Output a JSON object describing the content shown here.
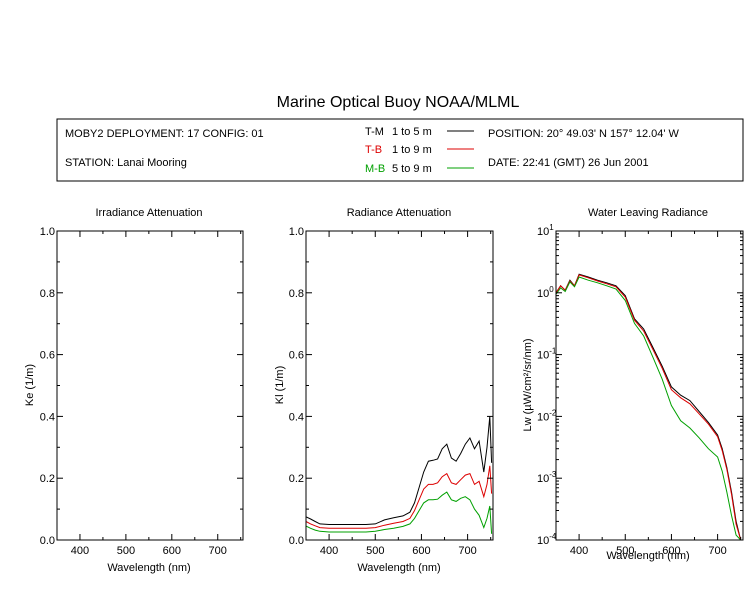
{
  "header": {
    "title": "Marine Optical Buoy NOAA/MLML",
    "deployment": "MOBY2 DEPLOYMENT: 17 CONFIG: 01",
    "station": "STATION: Lanai Mooring",
    "position": "POSITION: 20° 49.03' N   157° 12.04' W",
    "date": "DATE: 22:41 (GMT) 26 Jun 2001",
    "legend": [
      {
        "id": "TM",
        "code": "T-M",
        "range": "1 to 5  m",
        "color": "#000000"
      },
      {
        "id": "TB",
        "code": "T-B",
        "range": "1 to 9  m",
        "color": "#dd0000"
      },
      {
        "id": "MB",
        "code": "M-B",
        "range": "5 to 9  m",
        "color": "#00a000"
      }
    ]
  },
  "chart_data": [
    {
      "id": "irradiance",
      "type": "line",
      "title": "Irradiance Attenuation",
      "xlabel": "Wavelength (nm)",
      "ylabel": "Ke  (1/m)",
      "xlim": [
        350,
        755
      ],
      "ylim": [
        0,
        1
      ],
      "xticks": [
        400,
        500,
        600,
        700
      ],
      "yticks": [
        0,
        0.2,
        0.4,
        0.6,
        0.8,
        1.0
      ],
      "ytick_labels": [
        "0.0",
        "0.2",
        "0.4",
        "0.6",
        "0.8",
        "1.0"
      ],
      "yscale": "linear",
      "series": []
    },
    {
      "id": "radiance",
      "type": "line",
      "title": "Radiance Attenuation",
      "xlabel": "Wavelength (nm)",
      "ylabel": "Kl  (1/m)",
      "xlim": [
        350,
        755
      ],
      "ylim": [
        0,
        1
      ],
      "xticks": [
        400,
        500,
        600,
        700
      ],
      "yticks": [
        0,
        0.2,
        0.4,
        0.6,
        0.8,
        1.0
      ],
      "ytick_labels": [
        "0.0",
        "0.2",
        "0.4",
        "0.6",
        "0.8",
        "1.0"
      ],
      "yscale": "linear",
      "series": [
        {
          "name": "T-M",
          "color": "#000000",
          "x": [
            350,
            360,
            370,
            380,
            400,
            420,
            440,
            460,
            480,
            500,
            520,
            540,
            560,
            575,
            585,
            595,
            605,
            615,
            625,
            635,
            645,
            655,
            665,
            675,
            685,
            695,
            705,
            715,
            725,
            735,
            742,
            748,
            752
          ],
          "y": [
            0.075,
            0.068,
            0.06,
            0.052,
            0.05,
            0.05,
            0.05,
            0.05,
            0.05,
            0.052,
            0.065,
            0.072,
            0.078,
            0.09,
            0.12,
            0.17,
            0.22,
            0.255,
            0.258,
            0.262,
            0.295,
            0.31,
            0.265,
            0.255,
            0.28,
            0.31,
            0.33,
            0.295,
            0.32,
            0.22,
            0.3,
            0.4,
            0.25
          ]
        },
        {
          "name": "T-B",
          "color": "#dd0000",
          "x": [
            350,
            360,
            370,
            380,
            400,
            420,
            440,
            460,
            480,
            500,
            520,
            540,
            560,
            575,
            585,
            595,
            605,
            615,
            625,
            635,
            645,
            655,
            665,
            675,
            685,
            695,
            705,
            715,
            725,
            735,
            742,
            748,
            752
          ],
          "y": [
            0.06,
            0.052,
            0.046,
            0.04,
            0.038,
            0.038,
            0.038,
            0.038,
            0.038,
            0.04,
            0.048,
            0.054,
            0.06,
            0.07,
            0.095,
            0.13,
            0.165,
            0.18,
            0.18,
            0.185,
            0.205,
            0.215,
            0.185,
            0.18,
            0.195,
            0.21,
            0.215,
            0.18,
            0.19,
            0.14,
            0.18,
            0.24,
            0.15
          ]
        },
        {
          "name": "M-B",
          "color": "#00a000",
          "x": [
            350,
            360,
            370,
            380,
            400,
            420,
            440,
            460,
            480,
            500,
            520,
            540,
            560,
            575,
            585,
            595,
            605,
            615,
            625,
            635,
            645,
            655,
            665,
            675,
            685,
            695,
            705,
            715,
            725,
            735,
            742,
            748,
            752
          ],
          "y": [
            0.045,
            0.038,
            0.032,
            0.028,
            0.026,
            0.026,
            0.026,
            0.026,
            0.026,
            0.028,
            0.034,
            0.038,
            0.044,
            0.052,
            0.07,
            0.095,
            0.12,
            0.13,
            0.13,
            0.132,
            0.145,
            0.155,
            0.13,
            0.125,
            0.135,
            0.14,
            0.13,
            0.1,
            0.08,
            0.04,
            0.07,
            0.11,
            0.02
          ]
        }
      ]
    },
    {
      "id": "water-leaving",
      "type": "line",
      "title": "Water Leaving Radiance",
      "xlabel": "Wavelength (nm)",
      "ylabel": "Lw  (µW/cm²/sr/nm)",
      "xlim": [
        350,
        755
      ],
      "ylim": [
        0.0001,
        10
      ],
      "yscale": "log",
      "xticks": [
        400,
        500,
        600,
        700
      ],
      "yticks_exp": [
        -4,
        -3,
        -2,
        -1,
        0,
        1
      ],
      "series": [
        {
          "name": "T-M",
          "color": "#000000",
          "x": [
            350,
            360,
            370,
            380,
            390,
            400,
            420,
            440,
            460,
            480,
            500,
            520,
            540,
            560,
            580,
            600,
            620,
            640,
            660,
            680,
            700,
            710,
            720,
            730,
            740,
            750
          ],
          "y": [
            1.0,
            1.3,
            1.1,
            1.6,
            1.3,
            2.0,
            1.8,
            1.6,
            1.45,
            1.3,
            0.9,
            0.38,
            0.26,
            0.13,
            0.065,
            0.03,
            0.022,
            0.018,
            0.012,
            0.008,
            0.005,
            0.003,
            0.0015,
            0.0006,
            0.0002,
            0.0001
          ]
        },
        {
          "name": "T-B",
          "color": "#dd0000",
          "x": [
            350,
            360,
            370,
            380,
            390,
            400,
            420,
            440,
            460,
            480,
            500,
            520,
            540,
            560,
            580,
            600,
            620,
            640,
            660,
            680,
            700,
            710,
            720,
            730,
            740,
            750
          ],
          "y": [
            1.0,
            1.3,
            1.1,
            1.55,
            1.3,
            1.95,
            1.75,
            1.55,
            1.4,
            1.25,
            0.85,
            0.36,
            0.24,
            0.12,
            0.06,
            0.027,
            0.02,
            0.016,
            0.011,
            0.0075,
            0.0047,
            0.0028,
            0.0014,
            0.00055,
            0.00018,
            0.0001
          ]
        },
        {
          "name": "M-B",
          "color": "#00a000",
          "x": [
            350,
            360,
            370,
            380,
            390,
            400,
            420,
            440,
            460,
            480,
            500,
            520,
            540,
            560,
            580,
            600,
            620,
            640,
            660,
            680,
            700,
            710,
            720,
            730,
            740,
            750
          ],
          "y": [
            0.95,
            1.2,
            1.05,
            1.5,
            1.25,
            1.8,
            1.6,
            1.45,
            1.3,
            1.15,
            0.75,
            0.32,
            0.2,
            0.09,
            0.04,
            0.015,
            0.0085,
            0.0065,
            0.0045,
            0.003,
            0.0022,
            0.0013,
            0.0006,
            0.00025,
            0.00012,
            0.0001
          ]
        }
      ]
    }
  ]
}
